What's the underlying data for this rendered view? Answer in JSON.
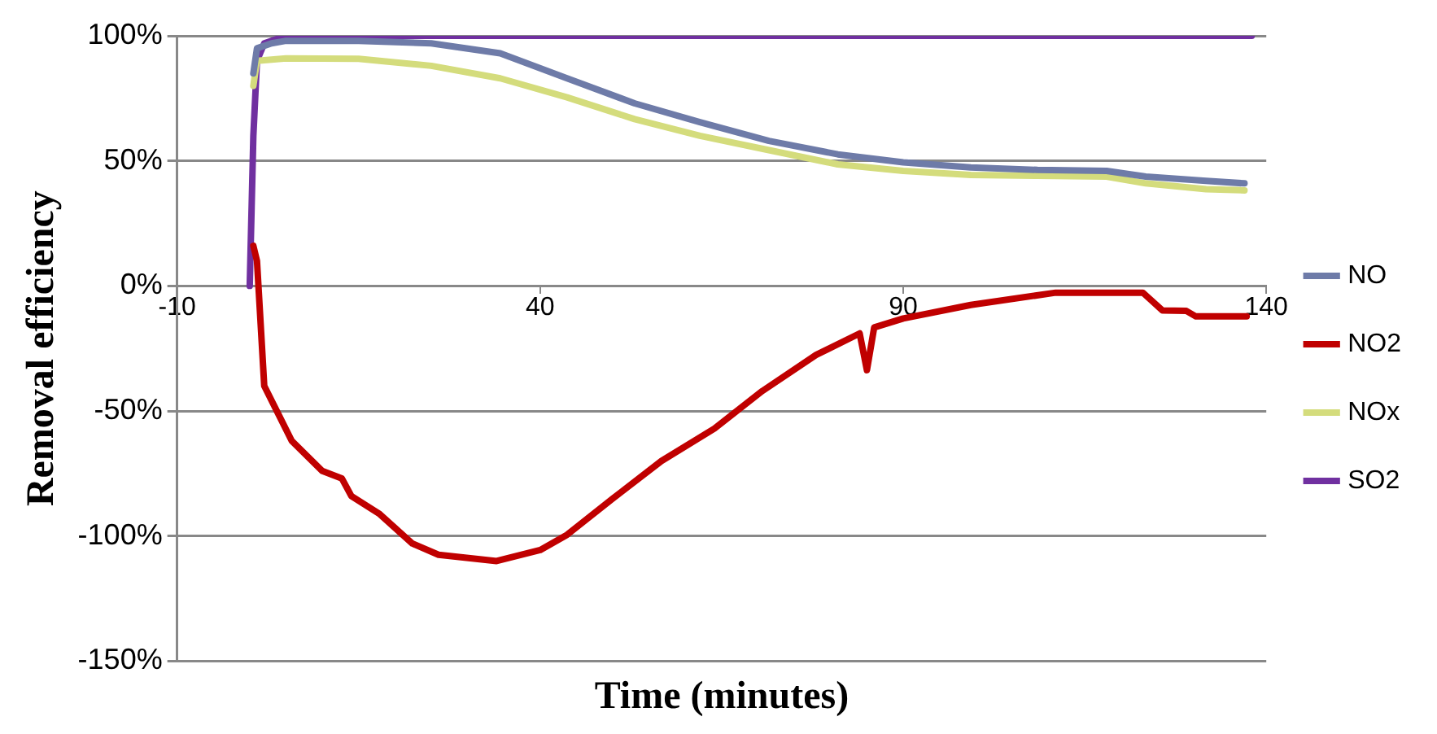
{
  "chart_data": {
    "type": "line",
    "xlabel": "Time (minutes)",
    "ylabel": "Removal efficiency",
    "xlim": [
      -10,
      140
    ],
    "xticks": [
      -10,
      40,
      90,
      140
    ],
    "ylim": [
      -150,
      100
    ],
    "yticks": [
      {
        "value": 100,
        "label": "100%"
      },
      {
        "value": 50,
        "label": "50%"
      },
      {
        "value": 0,
        "label": "0%"
      },
      {
        "value": -50,
        "label": "-50%"
      },
      {
        "value": -100,
        "label": "-100%"
      },
      {
        "value": -150,
        "label": "-150%"
      }
    ],
    "grid": "y",
    "legend": "right",
    "marker": "none",
    "line_style": "solid",
    "series": [
      {
        "name": "NO",
        "color": "#6e7ba8",
        "x": [
          0.5,
          1,
          3,
          5,
          15,
          25,
          34.5,
          43.7,
          53,
          62,
          71.5,
          81,
          90,
          99.3,
          108.5,
          118,
          123.4,
          131.7,
          137
        ],
        "values": [
          85,
          95,
          97,
          98,
          98,
          97,
          93,
          83,
          73,
          65.5,
          58,
          52.6,
          49.4,
          47.4,
          46.4,
          46,
          43.7,
          42,
          41
        ]
      },
      {
        "name": "NO2",
        "color": "#c00000",
        "x": [
          0.5,
          1,
          2,
          5.8,
          10,
          12.7,
          14,
          17.8,
          22.4,
          26,
          34,
          40,
          43.7,
          50,
          56.7,
          64,
          70.6,
          78,
          84,
          85,
          86,
          90,
          99.3,
          111,
          123,
          125.7,
          129,
          130.3,
          137.3
        ],
        "values": [
          16,
          10,
          -40,
          -62,
          -74,
          -77,
          -84,
          -91,
          -103,
          -107.5,
          -110,
          -105.6,
          -99.5,
          -85,
          -70,
          -57,
          -42,
          -27.6,
          -19,
          -33.7,
          -16.6,
          -13,
          -7.6,
          -2.7,
          -2.7,
          -9.8,
          -10,
          -12.2,
          -12.2
        ]
      },
      {
        "name": "NOx",
        "color": "#d4dc7c",
        "x": [
          0.5,
          1,
          5,
          15,
          25,
          34.5,
          43.7,
          53,
          62,
          71.5,
          81,
          90,
          99.3,
          108.5,
          118,
          123.4,
          131.7,
          137
        ],
        "values": [
          80,
          90,
          91,
          90.8,
          88,
          83,
          75.4,
          66.7,
          60,
          54.3,
          48.6,
          46,
          44.4,
          44,
          43.7,
          41,
          38.7,
          38.2
        ]
      },
      {
        "name": "SO2",
        "color": "#7030a0",
        "x": [
          0,
          0.5,
          1,
          2,
          4,
          6,
          138
        ],
        "values": [
          0,
          60,
          90,
          97,
          99,
          100,
          100
        ]
      }
    ]
  }
}
